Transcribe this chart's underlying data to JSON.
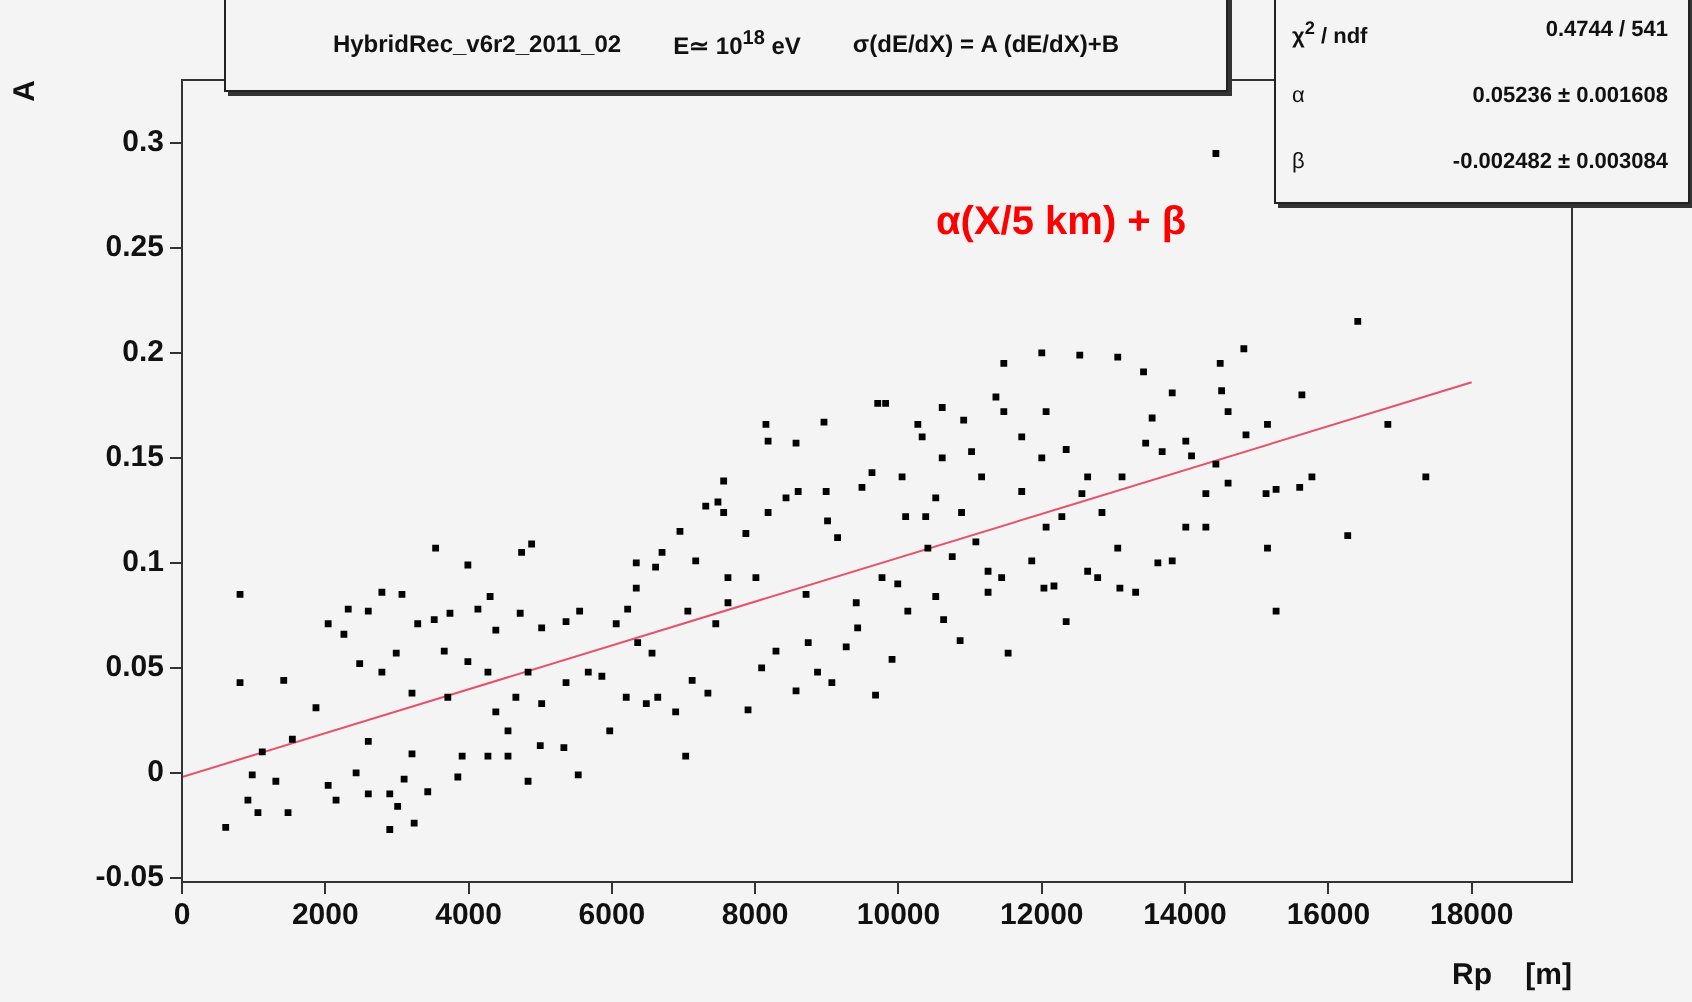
{
  "chart_data": {
    "type": "scatter",
    "title": "HybridRec_v6r2_2011_02",
    "subtitle": "E≃ 10$^{18}$ eV",
    "xlabel": "Rp    [m]",
    "ylabel": "A",
    "annotations": [
      "σ(dE/dX) = A (dE/dX)+B",
      "χ$^{2}$ / ndf",
      "0.4744 / 541",
      "α",
      "0.05236 ± 0.001608",
      "β",
      "-0.002482 ± 0.003084",
      "α(X/5 km) + β"
    ],
    "xlim": [
      0,
      19400
    ],
    "xticks": [
      0,
      2000,
      4000,
      6000,
      8000,
      10000,
      12000,
      14000,
      16000,
      18000
    ],
    "ylim": [
      -0.052,
      0.33
    ],
    "yticks": [
      -0.05,
      0,
      0.05,
      0.1,
      0.15,
      0.2,
      0.25,
      0.3
    ],
    "marker": "square",
    "legend": false,
    "grid": false,
    "series": [
      {
        "color": "#000000",
        "x": [
          810,
          610,
          810,
          1420,
          1060,
          1480,
          920,
          1310,
          980,
          1120,
          1540,
          1870,
          2040,
          2320,
          2260,
          2480,
          2150,
          2040,
          2600,
          2790,
          3070,
          2900,
          2900,
          3240,
          2600,
          2430,
          2600,
          2790,
          2990,
          3210,
          3290,
          3540,
          3520,
          3430,
          3210,
          3100,
          3010,
          3660,
          3740,
          3710,
          3990,
          3990,
          3850,
          3910,
          4130,
          4300,
          4380,
          4270,
          4270,
          4380,
          4550,
          4550,
          4660,
          4740,
          4880,
          4720,
          4830,
          4830,
          5020,
          5020,
          5000,
          5360,
          5360,
          5330,
          5530,
          5550,
          5670,
          5860,
          5970,
          6060,
          6200,
          6220,
          6340,
          6340,
          6360,
          6480,
          6610,
          6700,
          6560,
          6640,
          6890,
          6950,
          7030,
          7060,
          7170,
          7120,
          7340,
          7310,
          7480,
          7560,
          7560,
          7450,
          7620,
          7620,
          7870,
          7900,
          8010,
          8090,
          8150,
          8180,
          8180,
          8290,
          8430,
          8570,
          8570,
          8600,
          8710,
          8740,
          8870,
          8960,
          8990,
          9010,
          9070,
          9150,
          9270,
          9410,
          9430,
          9490,
          9630,
          9680,
          9710,
          9820,
          9770,
          9910,
          9990,
          10050,
          10100,
          10130,
          10270,
          10330,
          10380,
          16410,
          14430,
          14820,
          14490,
          13420,
          13060,
          12530,
          12000,
          11470,
          11360,
          11470,
          12060,
          10910,
          10610,
          13820,
          14510,
          14600,
          15630,
          16830,
          17360,
          16270,
          15770,
          15600,
          15270,
          15130,
          15150,
          14850,
          14430,
          14290,
          14290,
          14010,
          13820,
          13620,
          13310,
          13090,
          13060,
          12780,
          12640,
          12340,
          12170,
          12030,
          11860,
          11530,
          11440,
          11250,
          10860,
          10630,
          10520,
          15150,
          15270,
          13680,
          13450,
          13120,
          12640,
          12340,
          12000,
          11720,
          11720,
          12060,
          12280,
          12840,
          12560,
          11250,
          11080,
          10750,
          10880,
          11160,
          11020,
          14010,
          14090,
          13540,
          14600,
          10610,
          10520,
          10410
        ],
        "values": [
          0.085,
          -0.026,
          0.043,
          0.044,
          -0.019,
          -0.019,
          -0.013,
          -0.004,
          -0.001,
          0.01,
          0.016,
          0.031,
          0.071,
          0.078,
          0.066,
          0.052,
          -0.013,
          -0.006,
          0.077,
          0.086,
          0.085,
          -0.01,
          -0.027,
          -0.024,
          -0.01,
          0.0,
          0.015,
          0.048,
          0.057,
          0.038,
          0.071,
          0.107,
          0.073,
          -0.009,
          0.009,
          -0.003,
          -0.016,
          0.058,
          0.076,
          0.036,
          0.099,
          0.053,
          -0.002,
          0.008,
          0.078,
          0.084,
          0.068,
          0.048,
          0.008,
          0.029,
          0.02,
          0.008,
          0.036,
          0.105,
          0.109,
          0.076,
          0.048,
          -0.004,
          0.069,
          0.033,
          0.013,
          0.072,
          0.043,
          0.012,
          -0.001,
          0.077,
          0.048,
          0.046,
          0.02,
          0.071,
          0.036,
          0.078,
          0.088,
          0.1,
          0.062,
          0.033,
          0.098,
          0.105,
          0.057,
          0.036,
          0.029,
          0.115,
          0.008,
          0.077,
          0.101,
          0.044,
          0.038,
          0.127,
          0.129,
          0.139,
          0.124,
          0.071,
          0.081,
          0.093,
          0.114,
          0.03,
          0.093,
          0.05,
          0.166,
          0.158,
          0.124,
          0.058,
          0.131,
          0.157,
          0.039,
          0.134,
          0.085,
          0.062,
          0.048,
          0.167,
          0.134,
          0.12,
          0.043,
          0.112,
          0.06,
          0.081,
          0.069,
          0.136,
          0.143,
          0.037,
          0.176,
          0.176,
          0.093,
          0.054,
          0.09,
          0.141,
          0.122,
          0.077,
          0.166,
          0.16,
          0.122,
          0.215,
          0.295,
          0.202,
          0.195,
          0.191,
          0.198,
          0.199,
          0.2,
          0.195,
          0.179,
          0.172,
          0.172,
          0.168,
          0.174,
          0.181,
          0.182,
          0.172,
          0.18,
          0.166,
          0.141,
          0.113,
          0.141,
          0.136,
          0.135,
          0.133,
          0.166,
          0.161,
          0.147,
          0.133,
          0.117,
          0.117,
          0.101,
          0.1,
          0.086,
          0.088,
          0.107,
          0.093,
          0.096,
          0.072,
          0.089,
          0.088,
          0.101,
          0.057,
          0.093,
          0.086,
          0.063,
          0.073,
          0.084,
          0.107,
          0.077,
          0.153,
          0.157,
          0.141,
          0.141,
          0.154,
          0.15,
          0.16,
          0.134,
          0.117,
          0.122,
          0.124,
          0.133,
          0.096,
          0.11,
          0.103,
          0.124,
          0.141,
          0.153,
          0.158,
          0.151,
          0.169,
          0.138,
          0.15,
          0.131,
          0.107
        ]
      },
      {
        "type": "line",
        "color": "#e8506a",
        "marker": "none",
        "x": [
          0,
          18000
        ],
        "values": [
          -0.002,
          0.186
        ]
      }
    ]
  }
}
